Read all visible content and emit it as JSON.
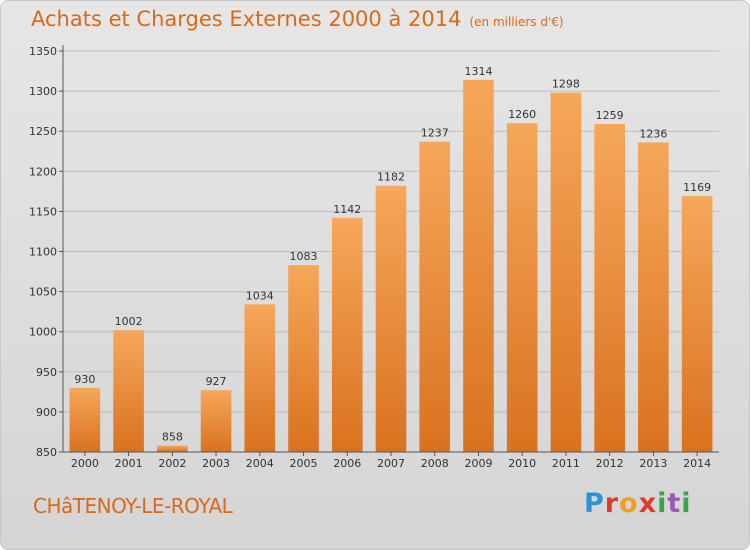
{
  "header": {
    "title": "Achats et Charges Externes 2000 à 2014",
    "subtitle": "(en milliers d'€)"
  },
  "footer": {
    "city": "CHâTENOY-LE-ROYAL",
    "logo_letters": [
      "P",
      "r",
      "o",
      "x",
      "i",
      "t",
      "i"
    ]
  },
  "colors": {
    "bar_top": "#f6a75a",
    "bar_bottom": "#d9721f",
    "accent": "#d86a1c",
    "grid": "#bdbdbd"
  },
  "chart_data": {
    "type": "bar",
    "title": "Achats et Charges Externes 2000 à 2014",
    "subtitle": "(en milliers d'€)",
    "categories": [
      "2000",
      "2001",
      "2002",
      "2003",
      "2004",
      "2005",
      "2006",
      "2007",
      "2008",
      "2009",
      "2010",
      "2011",
      "2012",
      "2013",
      "2014"
    ],
    "values": [
      930,
      1002,
      858,
      927,
      1034,
      1083,
      1142,
      1182,
      1237,
      1314,
      1260,
      1298,
      1259,
      1236,
      1169
    ],
    "ylim": [
      850,
      1350
    ],
    "yticks": [
      850,
      900,
      950,
      1000,
      1050,
      1100,
      1150,
      1200,
      1250,
      1300,
      1350
    ],
    "grid": true,
    "xlabel": "",
    "ylabel": ""
  }
}
